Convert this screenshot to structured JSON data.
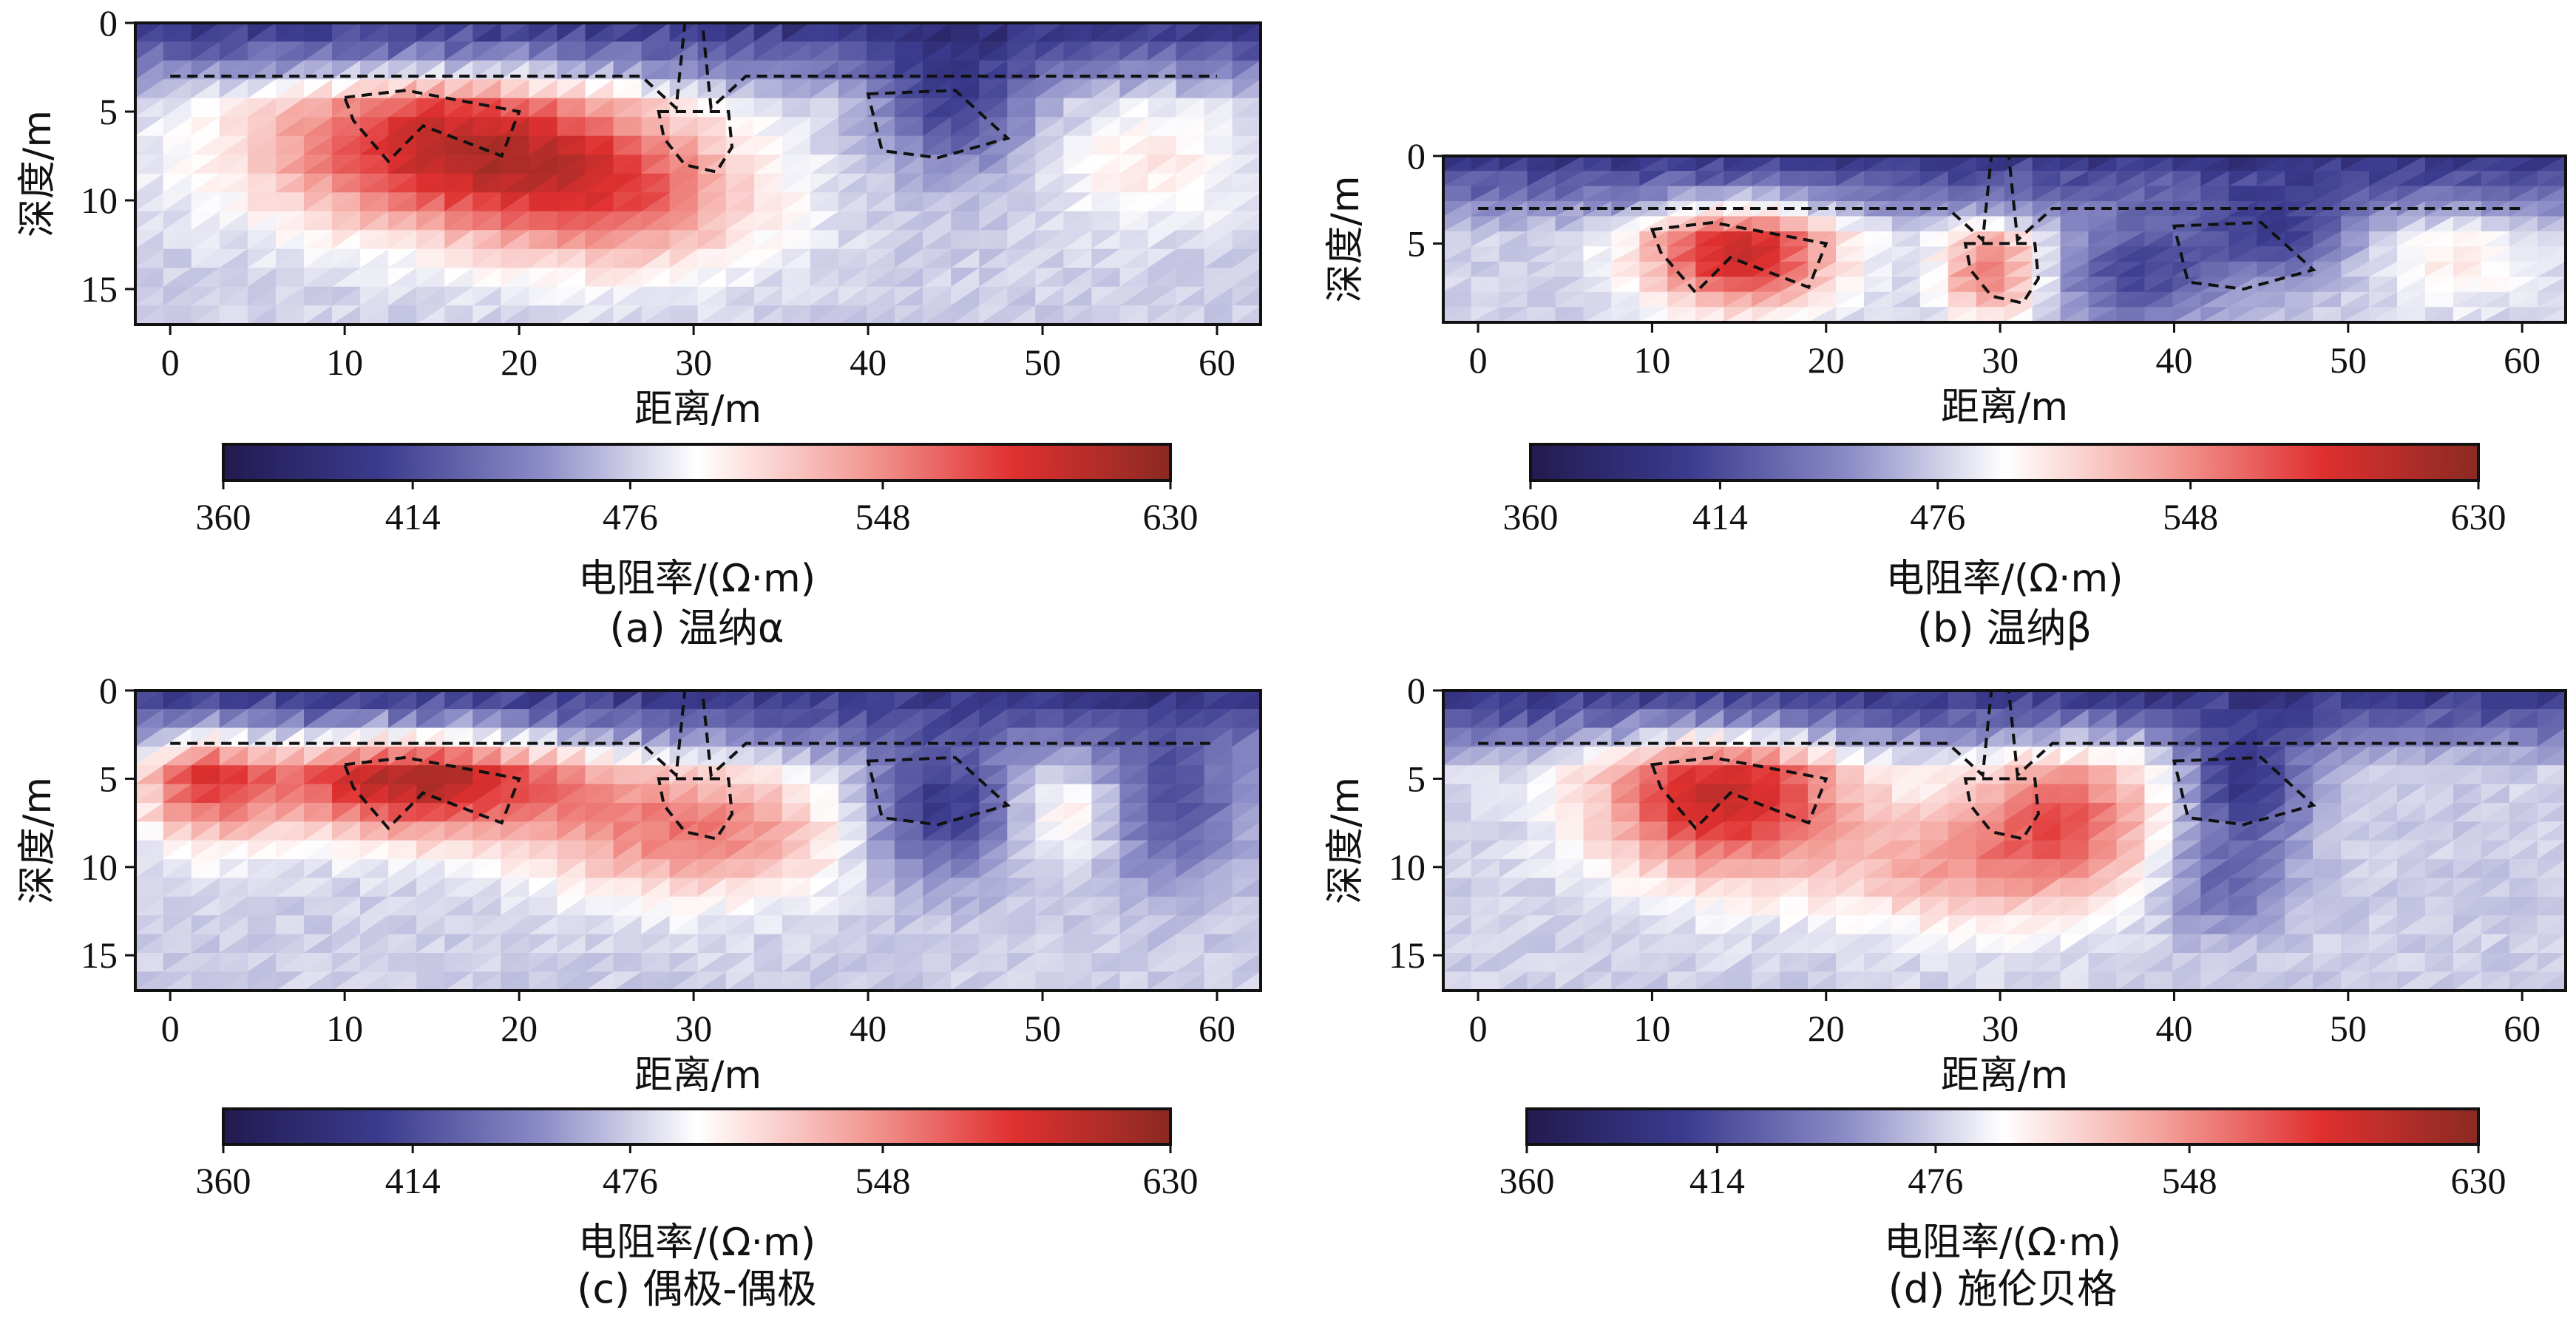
{
  "chart_data": [
    {
      "type": "heatmap",
      "caption": "(a) 温纳α",
      "xlabel": "距离/m",
      "ylabel": "深度/m",
      "xlim": [
        -2,
        62.5
      ],
      "ylim": [
        17,
        0
      ],
      "xticks": [
        0,
        10,
        20,
        30,
        40,
        50,
        60
      ],
      "yticks": [
        0,
        5,
        10,
        15
      ],
      "colorbar": {
        "label": "电阻率/(Ω·m)",
        "ticks": [
          360,
          414,
          476,
          548,
          630
        ],
        "colors": [
          "#221a4f",
          "#3b3b8f",
          "#8a8ac6",
          "#ffffff",
          "#f4a19b",
          "#e03030",
          "#8a2a22"
        ]
      },
      "anomalies": [
        {
          "center": [
            16,
            7
          ],
          "radius": [
            12,
            5
          ],
          "value": 600
        },
        {
          "center": [
            26,
            10
          ],
          "radius": [
            9,
            4.5
          ],
          "value": 545
        },
        {
          "center": [
            45,
            4
          ],
          "radius": [
            5,
            4.5
          ],
          "value": 405
        },
        {
          "center": [
            56,
            8
          ],
          "radius": [
            6,
            4
          ],
          "value": 505
        }
      ],
      "interface_depth": 3,
      "outlines": [
        {
          "kind": "interface",
          "points": [
            [
              0,
              3
            ],
            [
              27,
              3
            ],
            [
              29,
              4.8
            ],
            [
              29.5,
              0
            ],
            [
              30.5,
              0
            ],
            [
              31,
              4.8
            ],
            [
              33,
              3
            ],
            [
              60,
              3
            ]
          ]
        },
        {
          "kind": "cavity",
          "points": [
            [
              10,
              4.2
            ],
            [
              13.5,
              3.8
            ],
            [
              20,
              5
            ],
            [
              19,
              7.5
            ],
            [
              14.5,
              5.8
            ],
            [
              12.5,
              7.8
            ],
            [
              10.5,
              5.5
            ]
          ]
        },
        {
          "kind": "cavity",
          "points": [
            [
              28,
              5
            ],
            [
              32,
              5
            ],
            [
              32.2,
              7
            ],
            [
              31.3,
              8.4
            ],
            [
              29.5,
              8
            ],
            [
              28.3,
              6.5
            ]
          ]
        },
        {
          "kind": "cavity",
          "points": [
            [
              40,
              4
            ],
            [
              45,
              3.8
            ],
            [
              48,
              6.5
            ],
            [
              44,
              7.6
            ],
            [
              40.8,
              7.2
            ]
          ]
        }
      ]
    },
    {
      "type": "heatmap",
      "caption": "(b) 温纳β",
      "xlabel": "距离/m",
      "ylabel": "深度/m",
      "xlim": [
        -2,
        62.5
      ],
      "ylim": [
        9.5,
        0
      ],
      "xticks": [
        0,
        10,
        20,
        30,
        40,
        50,
        60
      ],
      "yticks": [
        0,
        5
      ],
      "colorbar": {
        "label": "电阻率/(Ω·m)",
        "ticks": [
          360,
          414,
          476,
          548,
          630
        ],
        "colors": [
          "#221a4f",
          "#3b3b8f",
          "#8a8ac6",
          "#ffffff",
          "#f4a19b",
          "#e03030",
          "#8a2a22"
        ]
      },
      "anomalies": [
        {
          "center": [
            15,
            5.5
          ],
          "radius": [
            6,
            3.5
          ],
          "value": 600
        },
        {
          "center": [
            29.5,
            6.5
          ],
          "radius": [
            3,
            3
          ],
          "value": 560
        },
        {
          "center": [
            38,
            6.5
          ],
          "radius": [
            5,
            3.5
          ],
          "value": 410
        },
        {
          "center": [
            46,
            4.2
          ],
          "radius": [
            5,
            3
          ],
          "value": 405
        },
        {
          "center": [
            56,
            6
          ],
          "radius": [
            5,
            3
          ],
          "value": 505
        }
      ],
      "interface_depth": 3,
      "outlines": [
        {
          "kind": "interface",
          "points": [
            [
              0,
              3
            ],
            [
              27,
              3
            ],
            [
              29,
              4.8
            ],
            [
              29.5,
              0
            ],
            [
              30.5,
              0
            ],
            [
              31,
              4.8
            ],
            [
              33,
              3
            ],
            [
              60,
              3
            ]
          ]
        },
        {
          "kind": "cavity",
          "points": [
            [
              10,
              4.2
            ],
            [
              13.5,
              3.8
            ],
            [
              20,
              5
            ],
            [
              19,
              7.5
            ],
            [
              14.5,
              5.8
            ],
            [
              12.5,
              7.8
            ],
            [
              10.5,
              5.5
            ]
          ]
        },
        {
          "kind": "cavity",
          "points": [
            [
              28,
              5
            ],
            [
              32,
              5
            ],
            [
              32.2,
              7
            ],
            [
              31.3,
              8.4
            ],
            [
              29.5,
              8
            ],
            [
              28.3,
              6.5
            ]
          ]
        },
        {
          "kind": "cavity",
          "points": [
            [
              40,
              4
            ],
            [
              45,
              3.8
            ],
            [
              48,
              6.5
            ],
            [
              44,
              7.6
            ],
            [
              40.8,
              7.2
            ]
          ]
        }
      ]
    },
    {
      "type": "heatmap",
      "caption": "(c) 偶极-偶极",
      "xlabel": "距离/m",
      "ylabel": "深度/m",
      "xlim": [
        -2,
        62.5
      ],
      "ylim": [
        17,
        0
      ],
      "xticks": [
        0,
        10,
        20,
        30,
        40,
        50,
        60
      ],
      "yticks": [
        0,
        5,
        10,
        15
      ],
      "colorbar": {
        "label": "电阻率/(Ω·m)",
        "ticks": [
          360,
          414,
          476,
          548,
          630
        ],
        "colors": [
          "#221a4f",
          "#3b3b8f",
          "#8a8ac6",
          "#ffffff",
          "#f4a19b",
          "#e03030",
          "#8a2a22"
        ]
      },
      "anomalies": [
        {
          "center": [
            14,
            5
          ],
          "radius": [
            10,
            3.5
          ],
          "value": 610
        },
        {
          "center": [
            30,
            8
          ],
          "radius": [
            10,
            4
          ],
          "value": 555
        },
        {
          "center": [
            2,
            5
          ],
          "radius": [
            4,
            4
          ],
          "value": 560
        },
        {
          "center": [
            44,
            6.5
          ],
          "radius": [
            5,
            4.5
          ],
          "value": 395
        },
        {
          "center": [
            57,
            6
          ],
          "radius": [
            5,
            5
          ],
          "value": 410
        },
        {
          "center": [
            52,
            7
          ],
          "radius": [
            4,
            3
          ],
          "value": 520
        }
      ],
      "interface_depth": 3,
      "outlines": [
        {
          "kind": "interface",
          "points": [
            [
              0,
              3
            ],
            [
              27,
              3
            ],
            [
              29,
              4.8
            ],
            [
              29.5,
              0
            ],
            [
              30.5,
              0
            ],
            [
              31,
              4.8
            ],
            [
              33,
              3
            ],
            [
              60,
              3
            ]
          ]
        },
        {
          "kind": "cavity",
          "points": [
            [
              10,
              4.2
            ],
            [
              13.5,
              3.8
            ],
            [
              20,
              5
            ],
            [
              19,
              7.5
            ],
            [
              14.5,
              5.8
            ],
            [
              12.5,
              7.8
            ],
            [
              10.5,
              5.5
            ]
          ]
        },
        {
          "kind": "cavity",
          "points": [
            [
              28,
              5
            ],
            [
              32,
              5
            ],
            [
              32.2,
              7
            ],
            [
              31.3,
              8.4
            ],
            [
              29.5,
              8
            ],
            [
              28.3,
              6.5
            ]
          ]
        },
        {
          "kind": "cavity",
          "points": [
            [
              40,
              4
            ],
            [
              45,
              3.8
            ],
            [
              48,
              6.5
            ],
            [
              44,
              7.6
            ],
            [
              40.8,
              7.2
            ]
          ]
        }
      ]
    },
    {
      "type": "heatmap",
      "caption": "(d) 施伦贝格",
      "xlabel": "距离/m",
      "ylabel": "深度/m",
      "xlim": [
        -2,
        62.5
      ],
      "ylim": [
        17,
        0
      ],
      "xticks": [
        0,
        10,
        20,
        30,
        40,
        50,
        60
      ],
      "yticks": [
        0,
        5,
        10,
        15
      ],
      "colorbar": {
        "label": "电阻率/(Ω·m)",
        "ticks": [
          360,
          414,
          476,
          548,
          630
        ],
        "colors": [
          "#221a4f",
          "#3b3b8f",
          "#8a8ac6",
          "#ffffff",
          "#f4a19b",
          "#e03030",
          "#8a2a22"
        ]
      },
      "anomalies": [
        {
          "center": [
            14,
            6
          ],
          "radius": [
            8,
            5
          ],
          "value": 600
        },
        {
          "center": [
            34,
            7
          ],
          "radius": [
            6,
            5
          ],
          "value": 560
        },
        {
          "center": [
            27,
            10
          ],
          "radius": [
            8,
            4
          ],
          "value": 530
        },
        {
          "center": [
            44,
            5
          ],
          "radius": [
            4,
            4
          ],
          "value": 395
        },
        {
          "center": [
            43,
            11
          ],
          "radius": [
            4,
            3
          ],
          "value": 430
        }
      ],
      "interface_depth": 3,
      "outlines": [
        {
          "kind": "interface",
          "points": [
            [
              0,
              3
            ],
            [
              27,
              3
            ],
            [
              29,
              4.8
            ],
            [
              29.5,
              0
            ],
            [
              30.5,
              0
            ],
            [
              31,
              4.8
            ],
            [
              33,
              3
            ],
            [
              60,
              3
            ]
          ]
        },
        {
          "kind": "cavity",
          "points": [
            [
              10,
              4.2
            ],
            [
              13.5,
              3.8
            ],
            [
              20,
              5
            ],
            [
              19,
              7.5
            ],
            [
              14.5,
              5.8
            ],
            [
              12.5,
              7.8
            ],
            [
              10.5,
              5.5
            ]
          ]
        },
        {
          "kind": "cavity",
          "points": [
            [
              28,
              5
            ],
            [
              32,
              5
            ],
            [
              32.2,
              7
            ],
            [
              31.3,
              8.4
            ],
            [
              29.5,
              8
            ],
            [
              28.3,
              6.5
            ]
          ]
        },
        {
          "kind": "cavity",
          "points": [
            [
              40,
              4
            ],
            [
              45,
              3.8
            ],
            [
              48,
              6.5
            ],
            [
              44,
              7.6
            ],
            [
              40.8,
              7.2
            ]
          ]
        }
      ]
    }
  ]
}
